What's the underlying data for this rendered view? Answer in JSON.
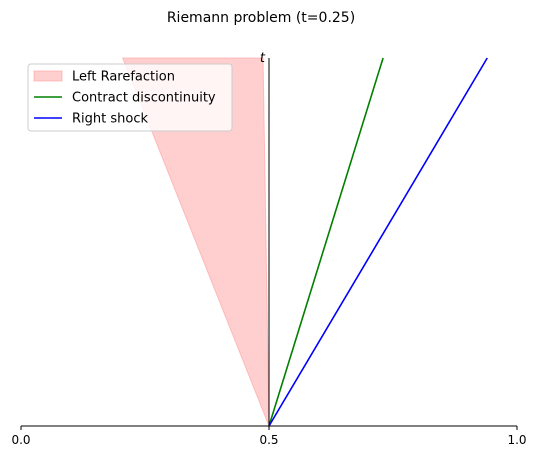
{
  "chart_data": {
    "type": "line",
    "title": "Riemann problem (t=0.25)",
    "xlabel": "",
    "ylabel": "t",
    "xlim": [
      0.0,
      1.0
    ],
    "ylim": [
      0.0,
      0.25
    ],
    "x_ticks": [
      {
        "value": 0.0,
        "label": "0.0"
      },
      {
        "value": 0.5,
        "label": "0.5"
      },
      {
        "value": 1.0,
        "label": "1.0"
      }
    ],
    "grid": false,
    "legend_position": "top-left",
    "series": [
      {
        "name": "Left Rarefaction",
        "kind": "fill",
        "color": "#ff9e9e",
        "points": [
          [
            0.5,
            0.0
          ],
          [
            0.205,
            0.25
          ],
          [
            0.488,
            0.25
          ]
        ]
      },
      {
        "name": "Contract discontinuity",
        "kind": "line",
        "color": "#008000",
        "points": [
          [
            0.5,
            0.0
          ],
          [
            0.73,
            0.25
          ]
        ]
      },
      {
        "name": "Right shock",
        "kind": "line",
        "color": "#0000ff",
        "points": [
          [
            0.5,
            0.0
          ],
          [
            0.94,
            0.25
          ]
        ]
      }
    ]
  }
}
